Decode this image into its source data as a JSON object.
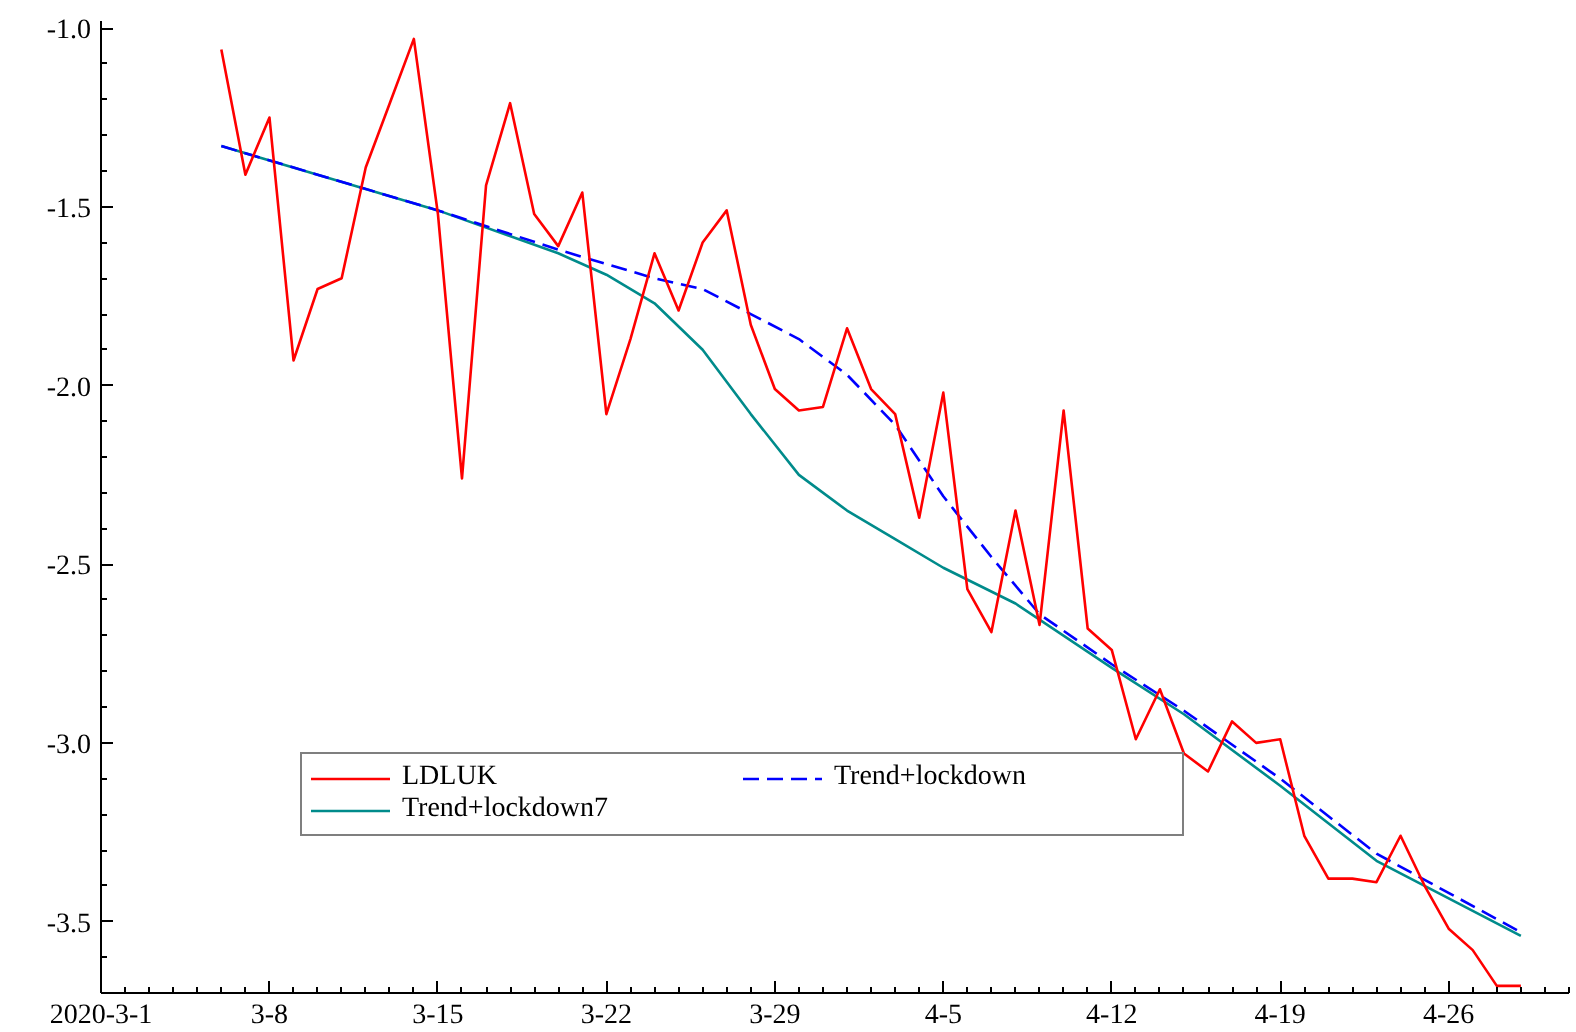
{
  "chart_data": {
    "type": "line",
    "xlim": [
      "2020-03-01",
      "2020-05-01"
    ],
    "xticks": [
      {
        "value": "2020-03-01",
        "label": "2020-3-1"
      },
      {
        "value": "2020-03-08",
        "label": "3-8"
      },
      {
        "value": "2020-03-15",
        "label": "3-15"
      },
      {
        "value": "2020-03-22",
        "label": "3-22"
      },
      {
        "value": "2020-03-29",
        "label": "3-29"
      },
      {
        "value": "2020-04-05",
        "label": "4-5"
      },
      {
        "value": "2020-04-12",
        "label": "4-12"
      },
      {
        "value": "2020-04-19",
        "label": "4-19"
      },
      {
        "value": "2020-04-26",
        "label": "4-26"
      }
    ],
    "ylim": [
      -3.7,
      -0.98
    ],
    "yticks": [
      {
        "value": -1.0,
        "label": "-1.0"
      },
      {
        "value": -1.5,
        "label": "-1.5"
      },
      {
        "value": -2.0,
        "label": "-2.0"
      },
      {
        "value": -2.5,
        "label": "-2.5"
      },
      {
        "value": -3.0,
        "label": "-3.0"
      },
      {
        "value": -3.5,
        "label": "-3.5"
      }
    ],
    "grid": false,
    "legend": "bottom left",
    "series": [
      {
        "name": "LDLUK",
        "color": "#ff0000",
        "line_style": "solid",
        "x": [
          "2020-03-06",
          "2020-03-07",
          "2020-03-08",
          "2020-03-09",
          "2020-03-10",
          "2020-03-11",
          "2020-03-12",
          "2020-03-13",
          "2020-03-14",
          "2020-03-15",
          "2020-03-16",
          "2020-03-17",
          "2020-03-18",
          "2020-03-19",
          "2020-03-20",
          "2020-03-21",
          "2020-03-22",
          "2020-03-23",
          "2020-03-24",
          "2020-03-25",
          "2020-03-26",
          "2020-03-27",
          "2020-03-28",
          "2020-03-29",
          "2020-03-30",
          "2020-03-31",
          "2020-04-01",
          "2020-04-02",
          "2020-04-03",
          "2020-04-04",
          "2020-04-05",
          "2020-04-06",
          "2020-04-07",
          "2020-04-08",
          "2020-04-09",
          "2020-04-10",
          "2020-04-11",
          "2020-04-12",
          "2020-04-13",
          "2020-04-14",
          "2020-04-15",
          "2020-04-16",
          "2020-04-17",
          "2020-04-18",
          "2020-04-19",
          "2020-04-20",
          "2020-04-21",
          "2020-04-22",
          "2020-04-23",
          "2020-04-24",
          "2020-04-25",
          "2020-04-26",
          "2020-04-27",
          "2020-04-28",
          "2020-04-29"
        ],
        "values": [
          -1.06,
          -1.41,
          -1.25,
          -1.93,
          -1.73,
          -1.7,
          -1.39,
          -1.21,
          -1.03,
          -1.52,
          -2.26,
          -1.44,
          -1.21,
          -1.52,
          -1.61,
          -1.46,
          -2.08,
          -1.87,
          -1.63,
          -1.79,
          -1.6,
          -1.51,
          -1.83,
          -2.01,
          -2.07,
          -2.06,
          -1.84,
          -2.01,
          -2.08,
          -2.37,
          -2.02,
          -2.57,
          -2.69,
          -2.35,
          -2.67,
          -2.07,
          -2.68,
          -2.74,
          -2.99,
          -2.85,
          -3.03,
          -3.08,
          -2.94,
          -3.0,
          -2.99,
          -3.26,
          -3.38,
          -3.38,
          -3.39,
          -3.26,
          -3.4,
          -3.52,
          -3.58,
          -3.68,
          -3.68
        ]
      },
      {
        "name": "Trend+lockdown",
        "color": "#0000ff",
        "line_style": "dashed",
        "x": [
          "2020-03-06",
          "2020-03-15",
          "2020-03-20",
          "2020-03-22",
          "2020-03-24",
          "2020-03-26",
          "2020-03-28",
          "2020-03-30",
          "2020-04-01",
          "2020-04-03",
          "2020-04-05",
          "2020-04-07",
          "2020-04-09",
          "2020-04-12",
          "2020-04-15",
          "2020-04-19",
          "2020-04-23",
          "2020-04-29"
        ],
        "values": [
          -1.33,
          -1.51,
          -1.62,
          -1.66,
          -1.7,
          -1.73,
          -1.8,
          -1.87,
          -1.97,
          -2.11,
          -2.31,
          -2.48,
          -2.64,
          -2.78,
          -2.91,
          -3.1,
          -3.31,
          -3.53
        ]
      },
      {
        "name": "Trend+lockdown7",
        "color": "#008b8b",
        "line_style": "solid",
        "x": [
          "2020-03-06",
          "2020-03-15",
          "2020-03-20",
          "2020-03-22",
          "2020-03-24",
          "2020-03-26",
          "2020-03-28",
          "2020-03-30",
          "2020-04-01",
          "2020-04-03",
          "2020-04-05",
          "2020-04-08",
          "2020-04-12",
          "2020-04-15",
          "2020-04-19",
          "2020-04-23",
          "2020-04-29"
        ],
        "values": [
          -1.33,
          -1.51,
          -1.63,
          -1.69,
          -1.77,
          -1.9,
          -2.08,
          -2.25,
          -2.35,
          -2.43,
          -2.51,
          -2.61,
          -2.79,
          -2.92,
          -3.12,
          -3.33,
          -3.54
        ]
      }
    ]
  }
}
